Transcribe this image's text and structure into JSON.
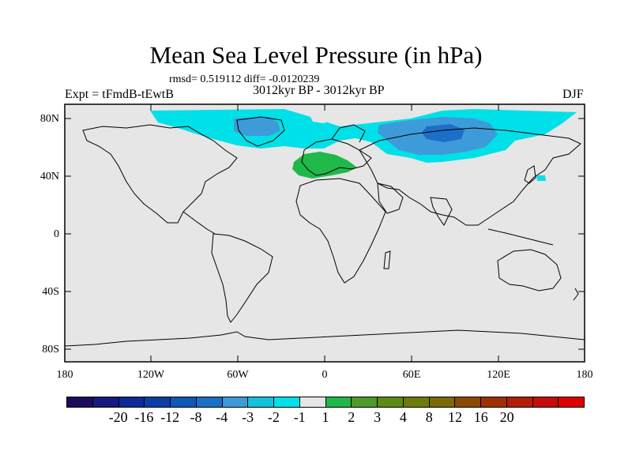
{
  "title": "Mean Sea Level Pressure (in hPa)",
  "stats": "rmsd= 0.519112 diff= -0.0120239",
  "subtitle": "3012kyr BP - 3012kyr BP",
  "expt": "Expt = tFmdB-tEwtB",
  "season": "DJF",
  "lat_labels": [
    "80N",
    "40N",
    "0",
    "40S",
    "80S"
  ],
  "lon_labels": [
    "180",
    "120W",
    "60W",
    "0",
    "60E",
    "120E",
    "180"
  ],
  "colorbar": {
    "colors": [
      "#1e0b5c",
      "#141a80",
      "#0e2a99",
      "#0c3fa6",
      "#0e58b8",
      "#1c6fc6",
      "#3d9bd9",
      "#14c2dc",
      "#00e0e8",
      "#e6e6e6",
      "#20b84a",
      "#4e9a2a",
      "#5c8a14",
      "#6e7a0c",
      "#7a6a08",
      "#8a4a06",
      "#a03004",
      "#b41e06",
      "#c80a0a",
      "#dc0000"
    ],
    "labels": [
      "-20",
      "-16",
      "-12",
      "-8",
      "-4",
      "-3",
      "-2",
      "-1",
      "1",
      "2",
      "3",
      "4",
      "8",
      "12",
      "16",
      "20"
    ]
  }
}
